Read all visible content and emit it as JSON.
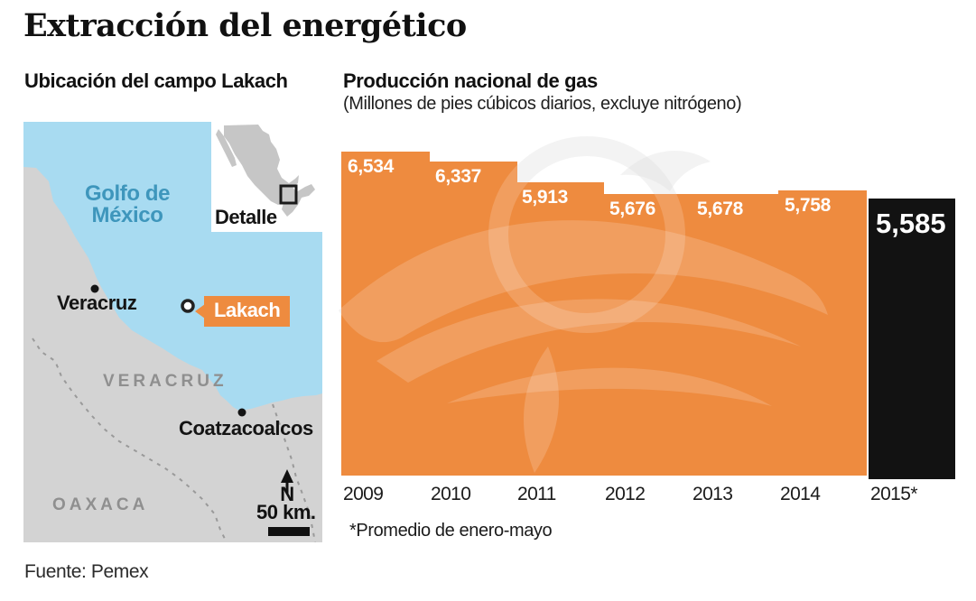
{
  "title": "Extracción del energético",
  "source": "Fuente: Pemex",
  "map": {
    "title": "Ubicación del campo Lakach",
    "gulf_label_line1": "Golfo de",
    "gulf_label_line2": "México",
    "inset_label": "Detalle",
    "field_label": "Lakach",
    "cities": [
      {
        "name": "Veracruz"
      },
      {
        "name": "Coatzacoalcos"
      }
    ],
    "states": [
      {
        "name": "VERACRUZ"
      },
      {
        "name": "OAXACA"
      }
    ],
    "north_label": "N",
    "scale_label": "50 km.",
    "colors": {
      "water": "#A8DBF1",
      "land": "#D3D3D3",
      "water_label": "#3E96BC",
      "state_label": "#8F8F8F",
      "inset_land": "#C6C6C6",
      "field_tag": "#EE8B3F"
    }
  },
  "chart_data": {
    "type": "bar",
    "title": "Producción nacional de gas",
    "subtitle": "(Millones de pies cúbicos diarios, excluye nitrógeno)",
    "categories": [
      "2009",
      "2010",
      "2011",
      "2012",
      "2013",
      "2014",
      "2015*"
    ],
    "values": [
      6534,
      6337,
      5913,
      5676,
      5678,
      5758,
      5585
    ],
    "value_labels": [
      "6,534",
      "6,337",
      "5,913",
      "5,676",
      "5,678",
      "5,758",
      "5,585"
    ],
    "footnote": "*Promedio de enero-mayo",
    "bar_color": "#EE8B3F",
    "highlight_color": "#121212",
    "highlight_index": 6,
    "ylim": [
      0,
      6534
    ],
    "xlabel": "",
    "ylabel": "",
    "grid": false,
    "legend": false
  }
}
